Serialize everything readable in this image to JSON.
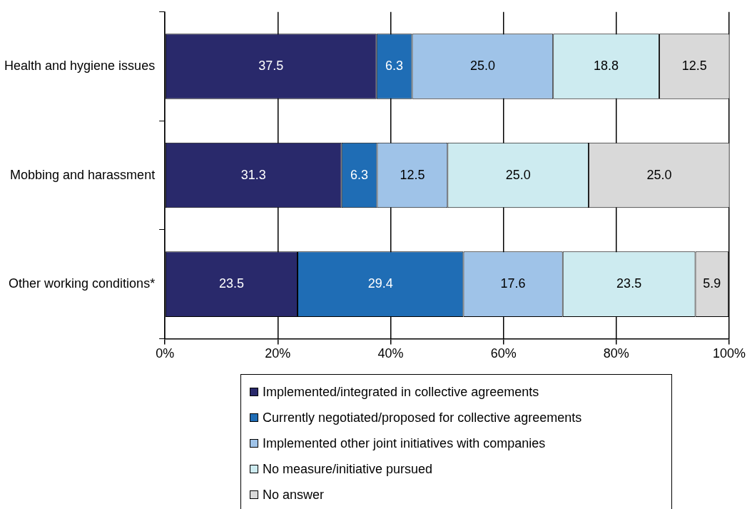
{
  "chart_data": {
    "type": "bar",
    "orientation": "horizontal",
    "stacked": true,
    "grid": "x",
    "legend": "bottom",
    "categories": [
      "Health and hygiene issues",
      "Mobbing and harassment",
      "Other working conditions*"
    ],
    "xlim": [
      0,
      100
    ],
    "xticks": [
      {
        "value": 0,
        "label": "0%"
      },
      {
        "value": 20,
        "label": "20%"
      },
      {
        "value": 40,
        "label": "40%"
      },
      {
        "value": 60,
        "label": "60%"
      },
      {
        "value": 80,
        "label": "80%"
      },
      {
        "value": 100,
        "label": "100%"
      }
    ],
    "series": [
      {
        "name": "Implemented/integrated in collective agreements",
        "color": "#29296b",
        "values": [
          37.5,
          31.3,
          23.5
        ],
        "value_labels": [
          "37.5",
          "31.3",
          "23.5"
        ]
      },
      {
        "name": "Currently negotiated/proposed for collective agreements",
        "color": "#1f6db5",
        "values": [
          6.3,
          6.3,
          29.4
        ],
        "value_labels": [
          "6.3",
          "6.3",
          "29.4"
        ]
      },
      {
        "name": "Implemented other joint initiatives with companies",
        "color": "#9fc3e8",
        "values": [
          25,
          12.5,
          17.6
        ],
        "value_labels": [
          "25.0",
          "12.5",
          "17.6"
        ]
      },
      {
        "name": "No measure/initiative pursued",
        "color": "#cdebf0",
        "values": [
          18.8,
          25,
          23.5
        ],
        "value_labels": [
          "18.8",
          "25.0",
          "23.5"
        ]
      },
      {
        "name": "No answer",
        "color": "#d9d9d9",
        "values": [
          12.5,
          25,
          5.9
        ],
        "value_labels": [
          "12.5",
          "25.0",
          "5.9"
        ]
      }
    ]
  }
}
